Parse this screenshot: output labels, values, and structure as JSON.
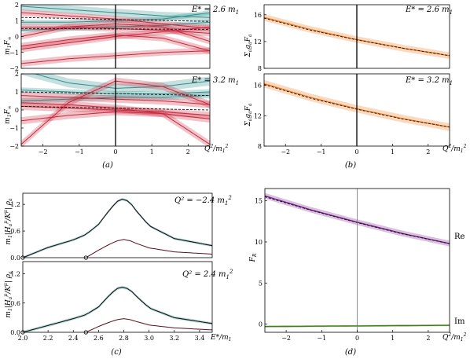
{
  "figure": {
    "panel_labels": [
      "(a)",
      "(b)",
      "(c)",
      "(d)"
    ]
  },
  "colors": {
    "teal": "#2f8f8c",
    "red": "#c8283c",
    "orange": "#f07818",
    "purple": "#7b1c8c",
    "green": "#3f7f1a",
    "maroon": "#5a0d1c",
    "dark": "#1a1a1a"
  },
  "chart_data": [
    {
      "id": "a-top",
      "panel": "(a)",
      "type": "line",
      "annotation": "E* = 2.6 m1",
      "ylabel": "m1 F∞",
      "xlabel": "",
      "xlim": [
        -2.6,
        2.6
      ],
      "ylim": [
        -2,
        2
      ],
      "yticks": [
        -2,
        -1,
        0,
        1,
        2
      ],
      "xticks": [],
      "vline_x": 0,
      "series": [
        {
          "color": "teal",
          "band": 0.25,
          "x": [
            -2.6,
            -1.3,
            0,
            1.3,
            2.6
          ],
          "values": [
            1.9,
            1.7,
            1.5,
            1.3,
            1.2
          ]
        },
        {
          "color": "teal",
          "band": 0.15,
          "x": [
            -2.6,
            -1.3,
            0,
            1.3,
            2.6
          ],
          "values": [
            0.9,
            0.9,
            1.0,
            1.1,
            1.5
          ]
        },
        {
          "color": "teal",
          "band": 0.15,
          "x": [
            -2.6,
            -1.3,
            0,
            1.3,
            2.6
          ],
          "values": [
            0.4,
            0.5,
            0.6,
            0.7,
            0.9
          ]
        },
        {
          "color": "red",
          "band": 0.2,
          "x": [
            -2.6,
            -1.3,
            0,
            1.3,
            2.6
          ],
          "values": [
            1.5,
            1.3,
            1.1,
            0.8,
            0.5
          ]
        },
        {
          "color": "red",
          "band": 0.2,
          "x": [
            -2.6,
            -1.3,
            0,
            1.3,
            2.6
          ],
          "values": [
            0.6,
            0.6,
            0.5,
            0.4,
            0.2
          ]
        },
        {
          "color": "red",
          "band": 0.2,
          "x": [
            -2.6,
            -1.3,
            0,
            1.3,
            2.6
          ],
          "values": [
            -0.8,
            -0.4,
            0.0,
            0.3,
            0.6
          ]
        },
        {
          "color": "red",
          "band": 0.2,
          "x": [
            -2.6,
            -1.3,
            0,
            1.3,
            2.6
          ],
          "values": [
            -0.6,
            -0.2,
            0.1,
            -0.1,
            -0.9
          ]
        },
        {
          "color": "red",
          "band": 0.2,
          "x": [
            -2.6,
            -1.3,
            0,
            1.3,
            2.6
          ],
          "values": [
            0.0,
            0.6,
            0.8,
            0.6,
            -0.3
          ]
        },
        {
          "color": "red",
          "band": 0.2,
          "x": [
            -2.6,
            -1.3,
            0,
            1.3,
            2.6
          ],
          "values": [
            -1.7,
            -1.4,
            -1.2,
            -1.0,
            -0.9
          ]
        }
      ],
      "dashed": [
        {
          "x": [
            -2.6,
            2.6
          ],
          "values": [
            1.2,
            0.95
          ]
        },
        {
          "x": [
            -2.6,
            2.6
          ],
          "values": [
            0.5,
            0.45
          ]
        }
      ]
    },
    {
      "id": "a-bottom",
      "panel": "(a)",
      "type": "line",
      "annotation": "E* = 3.2 m1",
      "ylabel": "m1 F∞",
      "xlabel": "Q²/m1²",
      "xlim": [
        -2.6,
        2.6
      ],
      "ylim": [
        -2,
        2
      ],
      "yticks": [
        -2,
        -1,
        0,
        1,
        2
      ],
      "xticks": [
        -2,
        -1,
        0,
        1,
        2
      ],
      "vline_x": 0,
      "series": [
        {
          "color": "teal",
          "band": 0.25,
          "x": [
            -2.6,
            -1.3,
            0,
            1.3,
            2.6
          ],
          "values": [
            2.2,
            1.5,
            1.2,
            1.3,
            1.6
          ]
        },
        {
          "color": "teal",
          "band": 0.15,
          "x": [
            -2.6,
            -1.3,
            0,
            1.3,
            2.6
          ],
          "values": [
            1.1,
            1.0,
            0.9,
            0.9,
            1.0
          ]
        },
        {
          "color": "teal",
          "band": 0.15,
          "x": [
            -2.6,
            -1.3,
            0,
            1.3,
            2.6
          ],
          "values": [
            0.5,
            0.6,
            0.7,
            0.7,
            0.8
          ]
        },
        {
          "color": "red",
          "band": 0.2,
          "x": [
            -2.6,
            -1.3,
            0,
            1.3,
            2.6
          ],
          "values": [
            -1.9,
            0.4,
            1.6,
            1.3,
            0.3
          ]
        },
        {
          "color": "red",
          "band": 0.2,
          "x": [
            -2.6,
            -1.3,
            0,
            1.3,
            2.6
          ],
          "values": [
            0.8,
            0.7,
            0.6,
            0.5,
            0.3
          ]
        },
        {
          "color": "red",
          "band": 0.2,
          "x": [
            -2.6,
            -1.3,
            0,
            1.3,
            2.6
          ],
          "values": [
            0.2,
            0.1,
            0.0,
            -0.1,
            -0.3
          ]
        },
        {
          "color": "red",
          "band": 0.2,
          "x": [
            -2.6,
            -1.3,
            0,
            1.3,
            2.6
          ],
          "values": [
            -0.6,
            -0.3,
            -0.1,
            -0.2,
            -0.5
          ]
        },
        {
          "color": "red",
          "band": 0.2,
          "x": [
            -2.6,
            -1.3,
            0,
            1.3,
            2.6
          ],
          "values": [
            0.4,
            0.3,
            0.1,
            -0.2,
            -1.9
          ]
        }
      ],
      "dashed": [
        {
          "x": [
            -2.6,
            2.6
          ],
          "values": [
            1.0,
            0.8
          ]
        },
        {
          "x": [
            -2.6,
            2.6
          ],
          "values": [
            0.2,
            0.0
          ]
        }
      ]
    },
    {
      "id": "b-top",
      "panel": "(b)",
      "type": "line",
      "annotation": "E* = 2.6 m1",
      "ylabel": "Σa ga Fa",
      "xlabel": "",
      "xlim": [
        -2.6,
        2.6
      ],
      "ylim": [
        8,
        17.5
      ],
      "yticks": [
        8,
        12,
        16
      ],
      "xticks": [],
      "vline_x": 0,
      "series": [
        {
          "color": "orange",
          "band": 0.5,
          "x": [
            -2.6,
            -1.3,
            0,
            1.3,
            2.6
          ],
          "values": [
            15.6,
            13.8,
            12.3,
            11.0,
            9.9
          ]
        }
      ],
      "dashed": [
        {
          "x": [
            -2.6,
            -1.3,
            0,
            1.3,
            2.6
          ],
          "values": [
            15.5,
            13.7,
            12.25,
            11.0,
            9.9
          ]
        }
      ]
    },
    {
      "id": "b-bottom",
      "panel": "(b)",
      "type": "line",
      "annotation": "E* = 3.2 m1",
      "ylabel": "Σa ga Fa",
      "xlabel": "Q²/m1²",
      "xlim": [
        -2.6,
        2.6
      ],
      "ylim": [
        8,
        17.5
      ],
      "yticks": [
        8,
        12,
        16
      ],
      "xticks": [
        -2,
        -1,
        0,
        1,
        2
      ],
      "vline_x": 0,
      "series": [
        {
          "color": "orange",
          "band": 0.5,
          "x": [
            -2.6,
            -1.3,
            0,
            1.3,
            2.6
          ],
          "values": [
            16.2,
            14.4,
            12.9,
            11.6,
            10.5
          ]
        }
      ],
      "dashed": [
        {
          "x": [
            -2.6,
            -1.3,
            0,
            1.3,
            2.6
          ],
          "values": [
            16.1,
            14.3,
            12.85,
            11.55,
            10.5
          ]
        }
      ]
    },
    {
      "id": "c-top",
      "panel": "(c)",
      "type": "line",
      "annotation": "Q² = -2.4 m1²",
      "ylabel": "m1 |H^μ_a / K^μ| ρa",
      "xlabel": "",
      "xlim": [
        2.0,
        3.5
      ],
      "ylim": [
        0,
        1.45
      ],
      "yticks": [
        0.0,
        0.6,
        1.2
      ],
      "xticks": [],
      "vline_x": null,
      "series": [
        {
          "color": "teal",
          "band": 0.03,
          "x": [
            2.0,
            2.2,
            2.4,
            2.5,
            2.6,
            2.7,
            2.75,
            2.8,
            2.85,
            2.9,
            3.0,
            3.2,
            3.5
          ],
          "values": [
            0.0,
            0.23,
            0.4,
            0.52,
            0.75,
            1.12,
            1.27,
            1.33,
            1.24,
            1.05,
            0.72,
            0.43,
            0.27
          ]
        },
        {
          "color": "maroon",
          "band": 0.0,
          "x": [
            2.5,
            2.6,
            2.7,
            2.75,
            2.8,
            2.85,
            2.9,
            3.0,
            3.2,
            3.5
          ],
          "values": [
            0.0,
            0.17,
            0.32,
            0.38,
            0.41,
            0.38,
            0.32,
            0.22,
            0.13,
            0.08
          ]
        }
      ],
      "dashed": [],
      "open_points": [
        {
          "x": 2.0,
          "y": 0.0
        },
        {
          "x": 2.5,
          "y": 0.0
        }
      ]
    },
    {
      "id": "c-bottom",
      "panel": "(c)",
      "type": "line",
      "annotation": "Q² = 2.4 m1²",
      "ylabel": "m1 |H^μ_a / K^μ| ρa",
      "xlabel": "E*/m1",
      "xlim": [
        2.0,
        3.5
      ],
      "ylim": [
        0,
        1.45
      ],
      "yticks": [
        0.0,
        0.6,
        1.2
      ],
      "xticks": [
        2.0,
        2.2,
        2.4,
        2.6,
        2.8,
        3.0,
        3.2,
        3.4
      ],
      "vline_x": null,
      "series": [
        {
          "color": "teal",
          "band": 0.03,
          "x": [
            2.0,
            2.2,
            2.4,
            2.5,
            2.6,
            2.7,
            2.75,
            2.8,
            2.85,
            2.9,
            3.0,
            3.2,
            3.5
          ],
          "values": [
            0.0,
            0.14,
            0.28,
            0.36,
            0.52,
            0.8,
            0.9,
            0.93,
            0.87,
            0.74,
            0.5,
            0.3,
            0.18
          ]
        },
        {
          "color": "maroon",
          "band": 0.0,
          "x": [
            2.5,
            2.6,
            2.7,
            2.75,
            2.8,
            2.85,
            2.9,
            3.0,
            3.2,
            3.5
          ],
          "values": [
            0.0,
            0.12,
            0.22,
            0.26,
            0.28,
            0.26,
            0.22,
            0.15,
            0.09,
            0.05
          ]
        }
      ],
      "dashed": [],
      "open_points": [
        {
          "x": 2.0,
          "y": 0.0
        },
        {
          "x": 2.5,
          "y": 0.0
        }
      ]
    },
    {
      "id": "d",
      "panel": "(d)",
      "type": "line",
      "annotation": "",
      "ylabel": "F_R",
      "xlabel": "Q²/m1²",
      "xlim": [
        -2.6,
        2.6
      ],
      "ylim": [
        -1,
        16.5
      ],
      "yticks": [
        0,
        5,
        10,
        15
      ],
      "xticks": [
        -2,
        -1,
        0,
        1,
        2
      ],
      "vline_x": 0,
      "series": [
        {
          "name": "Re",
          "color": "purple",
          "band": 0.35,
          "x": [
            -2.6,
            -1.3,
            0,
            1.3,
            2.6
          ],
          "values": [
            15.6,
            13.9,
            12.4,
            11.0,
            9.8
          ]
        },
        {
          "name": "Im",
          "color": "green",
          "band": 0.12,
          "x": [
            -2.6,
            2.6
          ],
          "values": [
            -0.3,
            -0.15
          ]
        }
      ],
      "dashed": [
        {
          "x": [
            -2.6,
            -1.3,
            0,
            1.3,
            2.6
          ],
          "values": [
            15.5,
            13.85,
            12.35,
            10.95,
            9.8
          ]
        }
      ],
      "series_labels": [
        {
          "text": "Re",
          "color": "purple",
          "y": 9.8
        },
        {
          "text": "Im",
          "color": "green",
          "y": -0.15
        }
      ]
    }
  ],
  "text": {
    "a_top_annot": "E* = 2.6 m",
    "a_bot_annot": "E* = 3.2 m",
    "b_top_annot": "E* = 2.6 m",
    "b_bot_annot": "E* = 3.2 m",
    "c_top_annot": "Q² = −2.4 m",
    "c_bot_annot": "Q² = 2.4 m",
    "sub1": "1",
    "sub1sq": "1",
    "sup2": "2",
    "a_ylabel": "m",
    "a_ylabel_F": "F",
    "inf": "∞",
    "b_ylabel": "Σ",
    "b_ylabel_rest": "g",
    "b_ylabel_F": "F",
    "sub_a": "a",
    "c_ylabel": "m",
    "c_ylabel_rest": "|H",
    "c_ylabel_mu": "μ",
    "c_ylabel_K": "/K",
    "c_ylabel_rho": "| ρ",
    "d_ylabel": "F",
    "sub_R": "R",
    "q_xlabel": "Q",
    "q_xlabel_rest": "/m",
    "e_xlabel": "E",
    "e_xlabel_rest": "*/m",
    "label_re": "Re",
    "label_im": "Im",
    "panel_a": "(a)",
    "panel_b": "(b)",
    "panel_c": "(c)",
    "panel_d": "(d)"
  }
}
